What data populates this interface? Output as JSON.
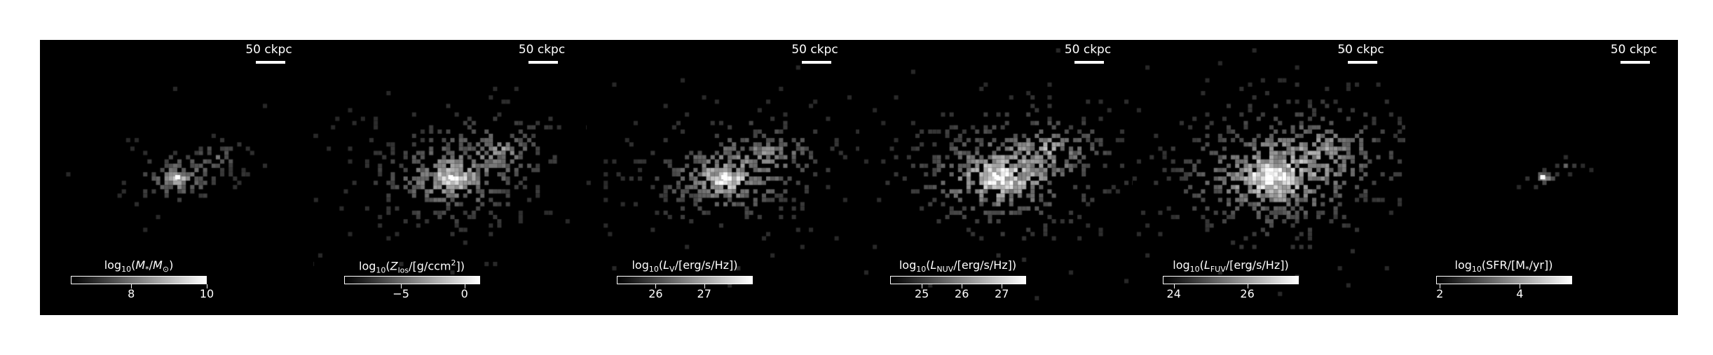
{
  "panels": [
    {
      "scale_label": "50 ckpc",
      "colorbar": {
        "title_html": "log<sub>10</sub>(<i>M</i><sub>*</sub>/<i>M</i><sub>⊙</sub>)",
        "min": 6.4,
        "max": 10.0,
        "ticks": [
          8,
          10
        ],
        "tick_labels": [
          "8",
          "10"
        ]
      },
      "map": {
        "intensity": 0.85,
        "extent": 0.8,
        "compact": 1.4,
        "seed": 11
      }
    },
    {
      "scale_label": "50 ckpc",
      "colorbar": {
        "title_html": "log<sub>10</sub>(<i>Z</i><sub>los</sub>/[g/ccm<sup>2</sup>])",
        "min": -9.5,
        "max": 1.2,
        "ticks": [
          -5,
          0
        ],
        "tick_labels": [
          "−5",
          "0"
        ]
      },
      "map": {
        "intensity": 0.95,
        "extent": 1.05,
        "compact": 1.0,
        "seed": 22
      }
    },
    {
      "scale_label": "50 ckpc",
      "colorbar": {
        "title_html": "log<sub>10</sub>(<i>L</i><sub>V</sub>/[erg/s/Hz])",
        "min": 25.2,
        "max": 28.0,
        "ticks": [
          26,
          27
        ],
        "tick_labels": [
          "26",
          "27"
        ]
      },
      "map": {
        "intensity": 1.05,
        "extent": 1.0,
        "compact": 1.0,
        "seed": 33
      }
    },
    {
      "scale_label": "50 ckpc",
      "colorbar": {
        "title_html": "log<sub>10</sub>(<i>L</i><sub>NUV</sub>/[erg/s/Hz])",
        "min": 24.2,
        "max": 27.6,
        "ticks": [
          25,
          26,
          27
        ],
        "tick_labels": [
          "25",
          "26",
          "27"
        ]
      },
      "map": {
        "intensity": 1.15,
        "extent": 1.05,
        "compact": 0.9,
        "seed": 44
      }
    },
    {
      "scale_label": "50 ckpc",
      "colorbar": {
        "title_html": "log<sub>10</sub>(<i>L</i><sub>FUV</sub>/[erg/s/Hz])",
        "min": 23.7,
        "max": 27.4,
        "ticks": [
          24,
          26
        ],
        "tick_labels": [
          "24",
          "26"
        ]
      },
      "map": {
        "intensity": 1.2,
        "extent": 1.08,
        "compact": 0.85,
        "seed": 55
      }
    },
    {
      "scale_label": "50 ckpc",
      "colorbar": {
        "title_html": "log<sub>10</sub>(SFR/[M<sub>*</sub>/yr])",
        "min": 1.9,
        "max": 5.3,
        "ticks": [
          2,
          4
        ],
        "tick_labels": [
          "2",
          "4"
        ]
      },
      "map": {
        "intensity": 0.75,
        "extent": 0.45,
        "compact": 2.0,
        "seed": 66
      }
    }
  ]
}
